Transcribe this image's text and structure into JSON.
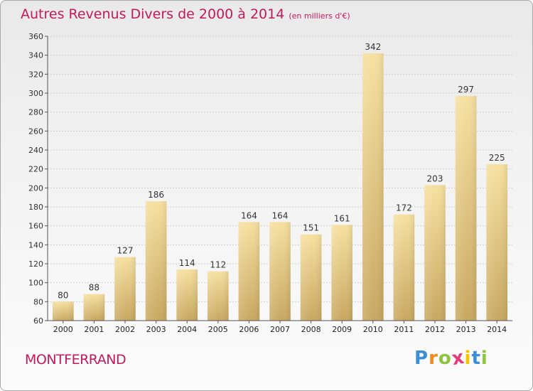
{
  "chart_data": {
    "type": "bar",
    "title": "Autres Revenus Divers de 2000 à 2014",
    "subtitle": "(en milliers d'€)",
    "categories": [
      "2000",
      "2001",
      "2002",
      "2003",
      "2004",
      "2005",
      "2006",
      "2007",
      "2008",
      "2009",
      "2010",
      "2011",
      "2012",
      "2013",
      "2014"
    ],
    "values": [
      80,
      88,
      127,
      186,
      114,
      112,
      164,
      164,
      151,
      161,
      342,
      172,
      203,
      297,
      225
    ],
    "ylim": [
      60,
      360
    ],
    "yticks": [
      60,
      80,
      100,
      120,
      140,
      160,
      180,
      200,
      220,
      240,
      260,
      280,
      300,
      320,
      340,
      360
    ],
    "grid": true,
    "bar_color_light": "#f6e0a0",
    "bar_color_dark": "#c8a860"
  },
  "location": "MONTFERRAND",
  "brand": {
    "letters": [
      "P",
      "r",
      "o",
      "x",
      "i",
      "t",
      "i"
    ],
    "colors": [
      "#3a8fd6",
      "#f08a1c",
      "#8cc63f",
      "#e63b7a",
      "#f5c400",
      "#3a8fd6",
      "#8cc63f"
    ]
  }
}
